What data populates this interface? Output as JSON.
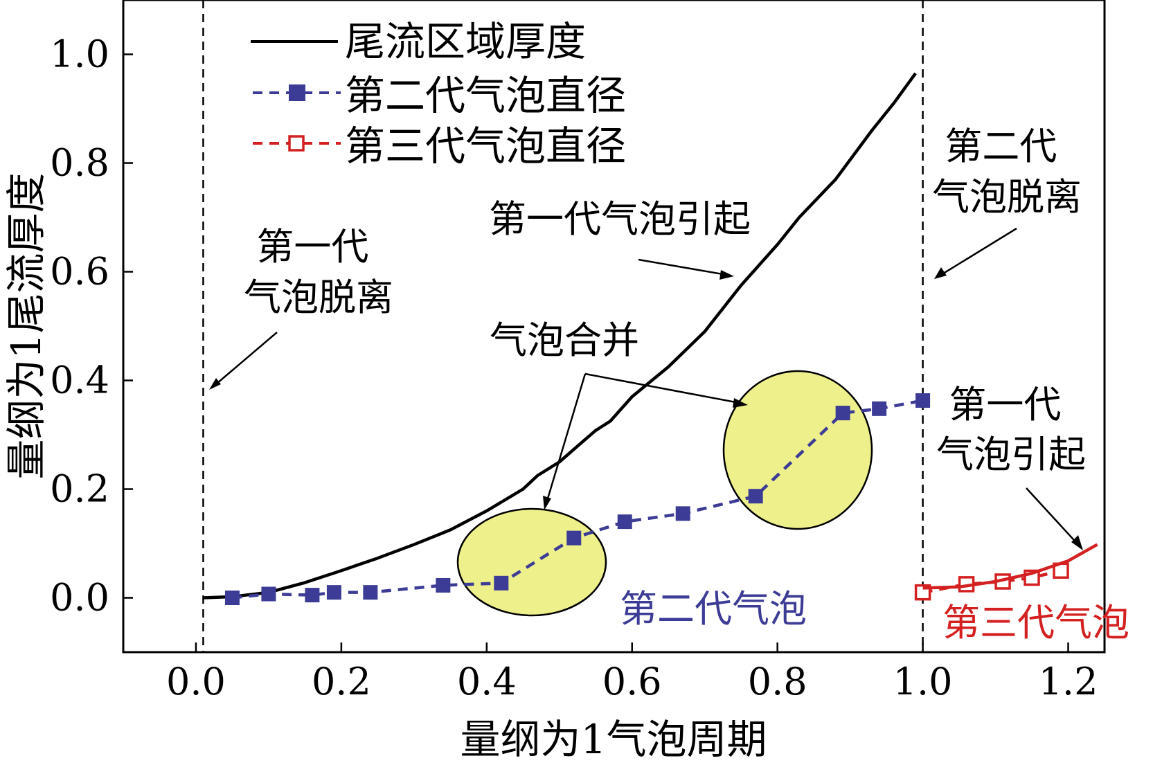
{
  "chart_data": {
    "type": "line",
    "title": "",
    "xlabel": "量纲为1气泡周期",
    "ylabel": "量纲为1尾流厚度",
    "xlim": [
      -0.1,
      1.25
    ],
    "ylim": [
      -0.1,
      1.1
    ],
    "xticks": [
      0.0,
      0.2,
      0.4,
      0.6,
      0.8,
      1.0,
      1.2
    ],
    "yticks": [
      0.0,
      0.2,
      0.4,
      0.6,
      0.8,
      1.0
    ],
    "xtick_labels": [
      "0.0",
      "0.2",
      "0.4",
      "0.6",
      "0.8",
      "1.0",
      "1.2"
    ],
    "ytick_labels": [
      "0.0",
      "0.2",
      "0.4",
      "0.6",
      "0.8",
      "1.0"
    ],
    "grid": false,
    "legend_position": "top-left",
    "legend": [
      "尾流区域厚度",
      "第二代气泡直径",
      "第三代气泡直径"
    ],
    "series": [
      {
        "name": "尾流区域厚度",
        "style": "solid",
        "marker": "none",
        "color": "#000000",
        "points": [
          [
            0.01,
            0.0
          ],
          [
            0.05,
            0.002
          ],
          [
            0.1,
            0.01
          ],
          [
            0.15,
            0.028
          ],
          [
            0.2,
            0.05
          ],
          [
            0.25,
            0.073
          ],
          [
            0.3,
            0.098
          ],
          [
            0.35,
            0.125
          ],
          [
            0.4,
            0.16
          ],
          [
            0.45,
            0.2
          ],
          [
            0.47,
            0.225
          ],
          [
            0.5,
            0.25
          ],
          [
            0.53,
            0.285
          ],
          [
            0.55,
            0.308
          ],
          [
            0.57,
            0.325
          ],
          [
            0.6,
            0.37
          ],
          [
            0.65,
            0.425
          ],
          [
            0.7,
            0.49
          ],
          [
            0.75,
            0.575
          ],
          [
            0.8,
            0.65
          ],
          [
            0.83,
            0.7
          ],
          [
            0.88,
            0.77
          ],
          [
            0.93,
            0.86
          ],
          [
            0.96,
            0.91
          ],
          [
            0.99,
            0.965
          ]
        ]
      },
      {
        "name": "第二代气泡直径",
        "style": "dashed",
        "marker": "filled-square",
        "color": "#3c3c96",
        "points": [
          [
            0.05,
            0.0
          ],
          [
            0.1,
            0.007
          ],
          [
            0.16,
            0.005
          ],
          [
            0.19,
            0.01
          ],
          [
            0.24,
            0.01
          ],
          [
            0.34,
            0.023
          ],
          [
            0.42,
            0.027
          ],
          [
            0.52,
            0.11
          ],
          [
            0.59,
            0.14
          ],
          [
            0.67,
            0.155
          ],
          [
            0.77,
            0.187
          ],
          [
            0.89,
            0.34
          ],
          [
            0.94,
            0.348
          ],
          [
            1.0,
            0.363
          ]
        ]
      },
      {
        "name": "第三代气泡直径",
        "style": "dashed",
        "marker": "open-square",
        "color": "#d42020",
        "points": [
          [
            1.0,
            0.01
          ],
          [
            1.06,
            0.025
          ],
          [
            1.11,
            0.03
          ],
          [
            1.15,
            0.037
          ],
          [
            1.19,
            0.05
          ]
        ]
      },
      {
        "name": "",
        "style": "solid",
        "marker": "none",
        "color": "#d42020",
        "points": [
          [
            1.0,
            0.018
          ],
          [
            1.05,
            0.02
          ],
          [
            1.1,
            0.03
          ],
          [
            1.15,
            0.045
          ],
          [
            1.2,
            0.068
          ],
          [
            1.24,
            0.098
          ]
        ]
      }
    ],
    "vlines": [
      0.01,
      1.0
    ],
    "annotations": [
      {
        "lines": [
          "第一代",
          "气泡脱离"
        ],
        "color": "#000000"
      },
      {
        "lines": [
          "第一代气泡引起"
        ],
        "color": "#000000"
      },
      {
        "lines": [
          "第二代",
          "气泡脱离"
        ],
        "color": "#000000"
      },
      {
        "lines": [
          "气泡合并"
        ],
        "color": "#000000"
      },
      {
        "lines": [
          "第一代",
          "气泡引起"
        ],
        "color": "#000000"
      },
      {
        "lines": [
          "第二代气泡"
        ],
        "color": "#3c3c96"
      },
      {
        "lines": [
          "第三代气泡"
        ],
        "color": "#d42020"
      }
    ],
    "highlight_color": "#eef08c"
  }
}
